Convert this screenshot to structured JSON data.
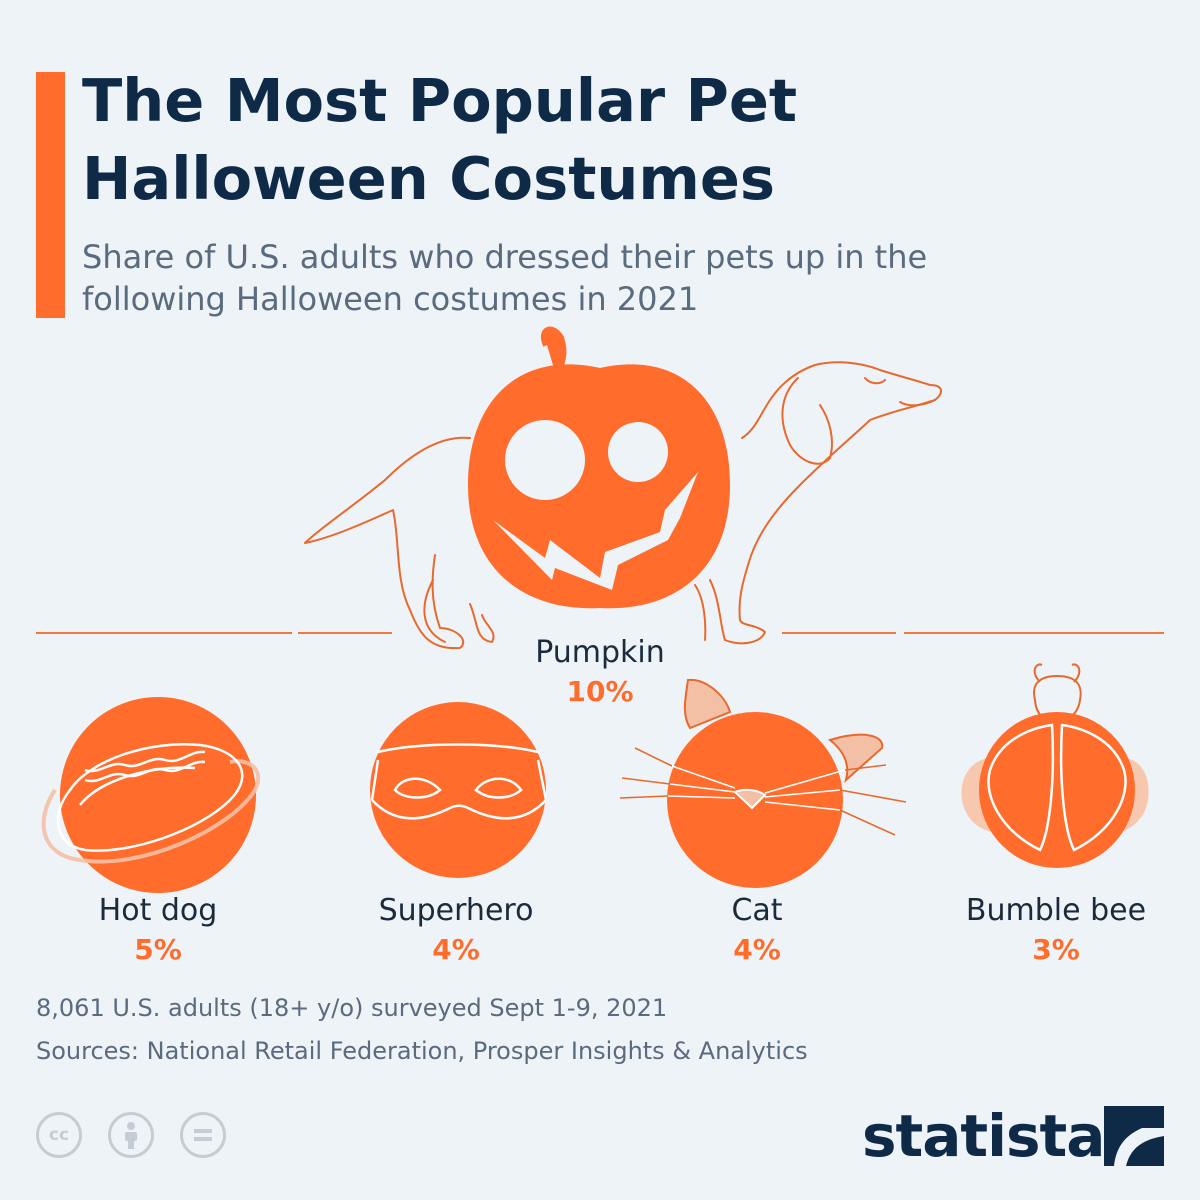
{
  "header": {
    "title": "The Most Popular Pet Halloween Costumes",
    "subtitle": "Share of U.S. adults who dressed their pets up in the following Halloween costumes in 2021"
  },
  "chart_data": {
    "type": "table",
    "categories": [
      "Pumpkin",
      "Hot dog",
      "Superhero",
      "Cat",
      "Bumble bee"
    ],
    "values": [
      10,
      5,
      4,
      4,
      3
    ],
    "value_labels": [
      "10%",
      "5%",
      "4%",
      "4%",
      "3%"
    ]
  },
  "icons": [
    "pumpkin-dog-icon",
    "hot-dog-icon",
    "superhero-mask-icon",
    "cat-face-icon",
    "bumble-bee-icon"
  ],
  "footer": {
    "note": "8,061 U.S. adults (18+ y/o) surveyed Sept 1-9, 2021",
    "sources": "Sources: National Retail Federation, Prosper Insights & Analytics",
    "license_icons": [
      "creative-commons-icon",
      "attribution-icon",
      "no-derivatives-icon"
    ],
    "brand": "statista"
  },
  "colors": {
    "accent": "#ff6c2c",
    "title": "#0e2a47",
    "background": "#eef3f8"
  }
}
